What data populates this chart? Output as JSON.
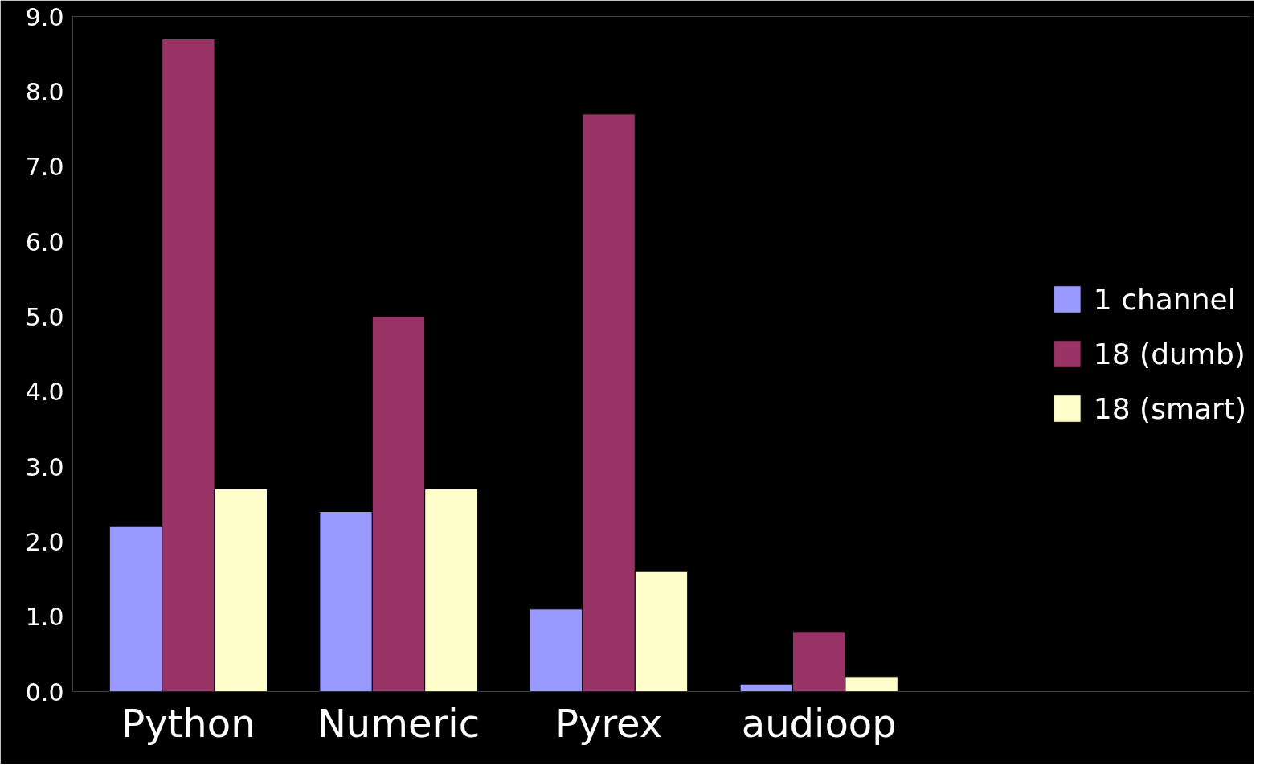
{
  "chart_data": {
    "type": "bar",
    "categories": [
      "Python",
      "Numeric",
      "Pyrex",
      "audioop"
    ],
    "series": [
      {
        "name": "1 channel",
        "color": "#9999ff",
        "values": [
          2.2,
          2.4,
          1.1,
          0.1
        ]
      },
      {
        "name": "18 (dumb)",
        "color": "#993366",
        "values": [
          8.7,
          5.0,
          7.7,
          0.8
        ]
      },
      {
        "name": "18 (smart)",
        "color": "#ffffcc",
        "values": [
          2.7,
          2.7,
          1.6,
          0.2
        ]
      }
    ],
    "ylim": [
      0,
      9
    ],
    "yticks": [
      {
        "value": 0,
        "label": "0.0"
      },
      {
        "value": 1,
        "label": "1.0"
      },
      {
        "value": 2,
        "label": "2.0"
      },
      {
        "value": 3,
        "label": "3.0"
      },
      {
        "value": 4,
        "label": "4.0"
      },
      {
        "value": 5,
        "label": "5.0"
      },
      {
        "value": 6,
        "label": "6.0"
      },
      {
        "value": 7,
        "label": "7.0"
      },
      {
        "value": 8,
        "label": "8.0"
      },
      {
        "value": 9,
        "label": "9.0"
      }
    ],
    "grid": false,
    "legend": "right"
  }
}
